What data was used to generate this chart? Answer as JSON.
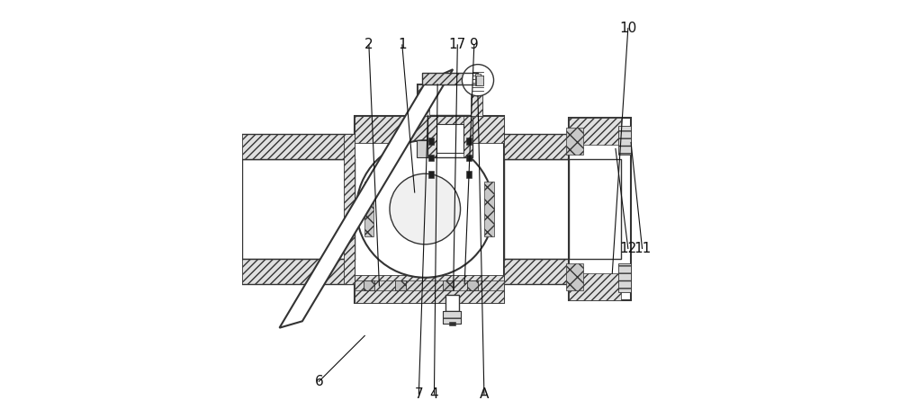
{
  "bg_color": "#ffffff",
  "line_color": "#333333",
  "hatch_color": "#555555",
  "title": "",
  "figsize": [
    10.0,
    4.65
  ]
}
